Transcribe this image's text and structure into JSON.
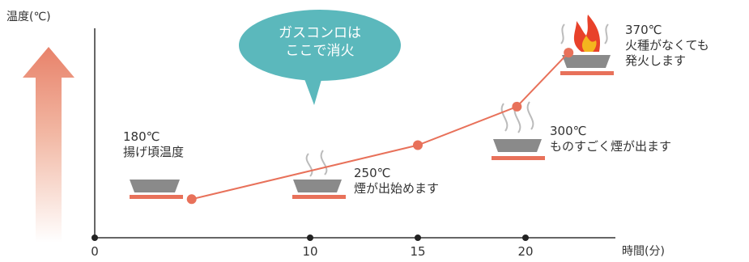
{
  "chart_data": {
    "type": "line",
    "ylabel": "温度(℃)",
    "xlabel": "時間(分)",
    "xticks": [
      0,
      10,
      15,
      20
    ],
    "xlim": [
      0,
      24
    ],
    "ylim": [
      130,
      390
    ],
    "series": [
      {
        "points": [
          {
            "x": 4.5,
            "y": 180
          },
          {
            "x": 15.0,
            "y": 250
          },
          {
            "x": 19.6,
            "y": 300
          },
          {
            "x": 22.0,
            "y": 370
          }
        ]
      }
    ],
    "annotations": [
      {
        "id": "a180",
        "text": "180℃\n揚げ頃温度"
      },
      {
        "id": "a250",
        "text": "250℃\n煙が出始めます"
      },
      {
        "id": "a300",
        "text": "300℃\nものすごく煙が出ます"
      },
      {
        "id": "a370",
        "text": "370℃\n火種がなくても\n発火します"
      }
    ],
    "callout": "ガスコンロは\nここで消火",
    "colors": {
      "line": "#e8715a",
      "callout": "#5bb8bc",
      "axis": "#666666",
      "pan": "#8a8a8a",
      "burner": "#e8715a"
    }
  }
}
